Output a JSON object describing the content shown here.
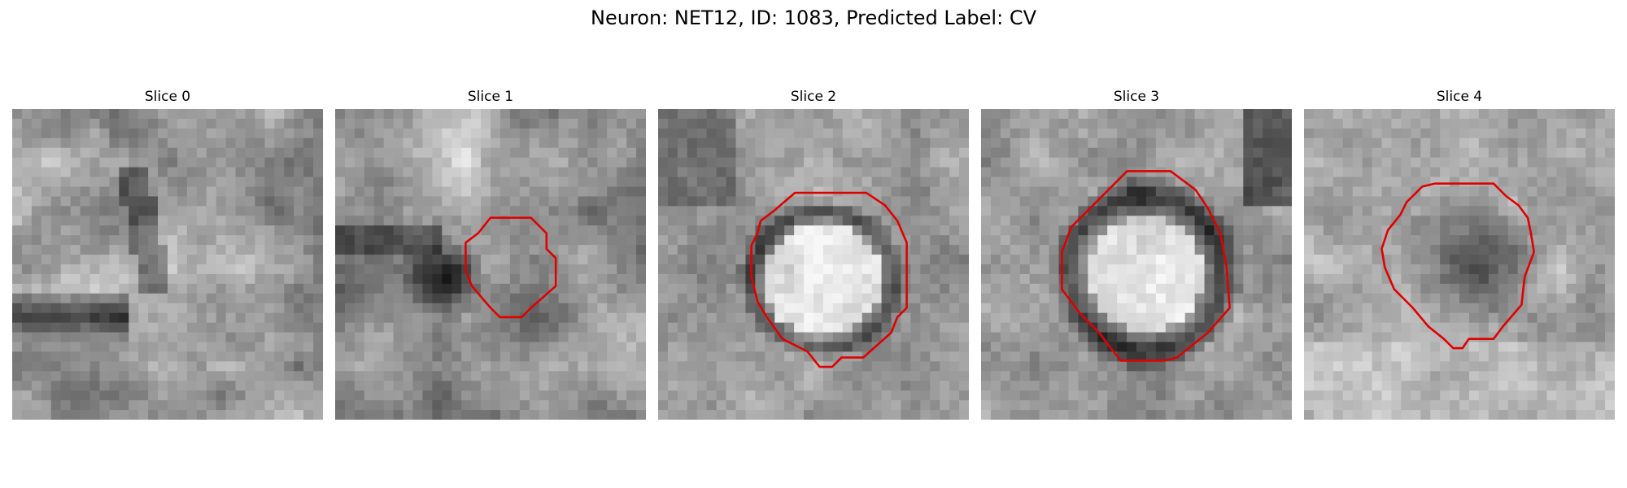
{
  "figure": {
    "title": "Neuron: NET12, ID: 1083, Predicted Label: CV"
  },
  "slices": [
    {
      "title": "Slice 0",
      "has_contour": false
    },
    {
      "title": "Slice 1",
      "has_contour": true
    },
    {
      "title": "Slice 2",
      "has_contour": true
    },
    {
      "title": "Slice 3",
      "has_contour": true
    },
    {
      "title": "Slice 4",
      "has_contour": true
    }
  ],
  "colors": {
    "contour": "#e00000",
    "background": "#ffffff"
  }
}
